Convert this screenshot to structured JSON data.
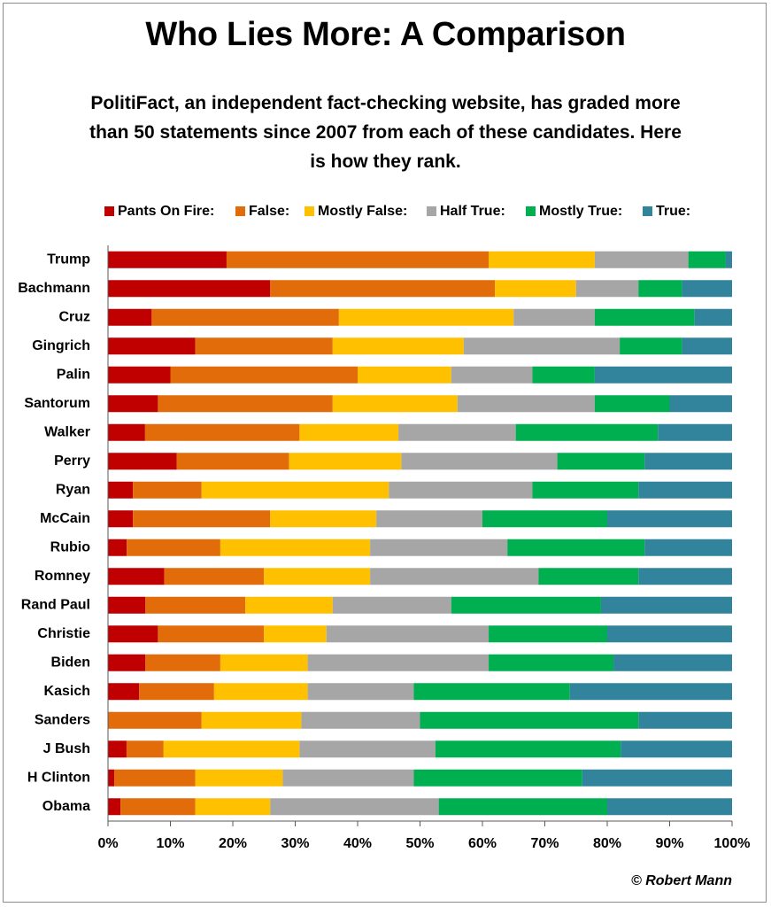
{
  "title": "Who Lies More: A Comparison",
  "subtitle": "PolitiFact,  an independent fact-checking website, has graded more than 50 statements since 2007 from each of these candidates. Here is how they rank.",
  "credit": "© Robert Mann",
  "chart_data": {
    "type": "bar",
    "orientation": "horizontal",
    "stacked": "percent",
    "title": "Who Lies More: A Comparison",
    "subtitle": "PolitiFact,  an independent fact-checking website, has graded more than 50 statements since 2007 from each of these candidates. Here is how they rank.",
    "legend_position": "top",
    "grid": false,
    "xlim": [
      0,
      100
    ],
    "x_ticks": [
      "0%",
      "10%",
      "20%",
      "30%",
      "40%",
      "50%",
      "60%",
      "70%",
      "80%",
      "90%",
      "100%"
    ],
    "categories": [
      "Trump",
      "Bachmann",
      "Cruz",
      "Gingrich",
      "Palin",
      "Santorum",
      "Walker",
      "Perry",
      "Ryan",
      "McCain",
      "Rubio",
      "Romney",
      "Rand Paul",
      "Christie",
      "Biden",
      "Kasich",
      "Sanders",
      "J Bush",
      "H Clinton",
      "Obama"
    ],
    "series": [
      {
        "name": "Pants On Fire:",
        "color": "#c00000",
        "values": [
          19,
          26,
          7,
          14,
          10,
          8,
          6,
          11,
          4,
          4,
          3,
          9,
          6,
          8,
          6,
          5,
          0,
          3,
          1,
          2
        ]
      },
      {
        "name": "False:",
        "color": "#e26b0a",
        "values": [
          42,
          36,
          30,
          22,
          30,
          28,
          25,
          18,
          11,
          22,
          15,
          16,
          16,
          17,
          12,
          12,
          15,
          6,
          13,
          12
        ]
      },
      {
        "name": "Mostly False:",
        "color": "#ffc000",
        "values": [
          17,
          13,
          28,
          21,
          15,
          20,
          16,
          18,
          30,
          17,
          24,
          17,
          14,
          10,
          14,
          15,
          16,
          22,
          14,
          12
        ]
      },
      {
        "name": "Half True:",
        "color": "#a6a6a6",
        "values": [
          15,
          10,
          13,
          25,
          13,
          22,
          19,
          25,
          23,
          17,
          22,
          27,
          19,
          26,
          29,
          17,
          19,
          22,
          21,
          27
        ]
      },
      {
        "name": "Mostly True:",
        "color": "#00b050",
        "values": [
          6,
          7,
          16,
          10,
          10,
          12,
          23,
          14,
          17,
          20,
          22,
          16,
          24,
          19,
          20,
          25,
          35,
          30,
          27,
          27
        ]
      },
      {
        "name": "True:",
        "color": "#31849b",
        "values": [
          1,
          8,
          6,
          8,
          22,
          10,
          12,
          14,
          15,
          20,
          14,
          15,
          21,
          20,
          19,
          26,
          15,
          18,
          24,
          20
        ]
      }
    ]
  }
}
